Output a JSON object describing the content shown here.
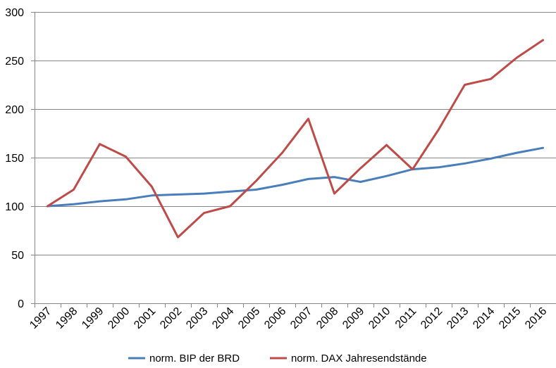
{
  "chart_data": {
    "type": "line",
    "title": "",
    "xlabel": "",
    "ylabel": "",
    "x": [
      "1997",
      "1998",
      "1999",
      "2000",
      "2001",
      "2002",
      "2003",
      "2004",
      "2005",
      "2006",
      "2007",
      "2008",
      "2009",
      "2010",
      "2011",
      "2012",
      "2013",
      "2014",
      "2015",
      "2016"
    ],
    "ylim": [
      0,
      300
    ],
    "yticks": [
      0,
      50,
      100,
      150,
      200,
      250,
      300
    ],
    "grid": true,
    "legend_position": "bottom",
    "series": [
      {
        "name": "norm. BIP der BRD",
        "color": "#4a7ebb",
        "values": [
          100,
          102,
          105,
          107,
          111,
          112,
          113,
          115,
          117,
          122,
          128,
          130,
          125,
          131,
          138,
          140,
          144,
          149,
          155,
          160
        ]
      },
      {
        "name": "norm. DAX Jahresendstände",
        "color": "#be4b48",
        "values": [
          100,
          117,
          164,
          151,
          120,
          68,
          93,
          100,
          126,
          155,
          190,
          113,
          139,
          163,
          138,
          179,
          225,
          231,
          253,
          271
        ]
      }
    ]
  }
}
